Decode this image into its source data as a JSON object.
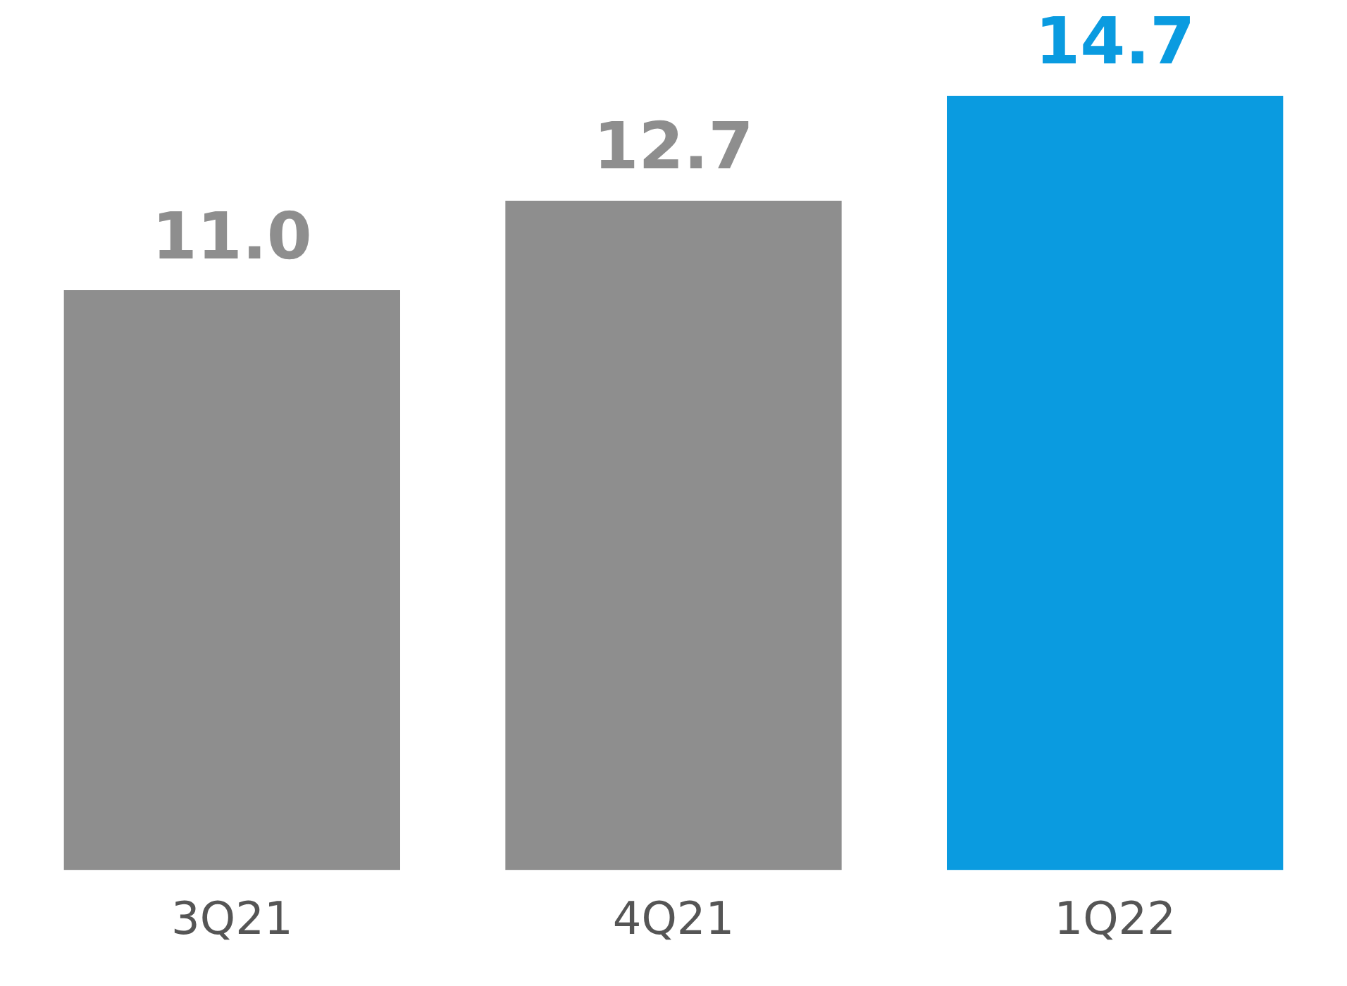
{
  "chart_data": {
    "type": "bar",
    "categories": [
      "3Q21",
      "4Q21",
      "1Q22"
    ],
    "values": [
      11.0,
      12.7,
      14.7
    ],
    "colors": [
      "#8e8e8e",
      "#8e8e8e",
      "#0a9be0"
    ],
    "value_labels": [
      "11.0",
      "12.7",
      "14.7"
    ],
    "grid": false,
    "legend": false
  }
}
